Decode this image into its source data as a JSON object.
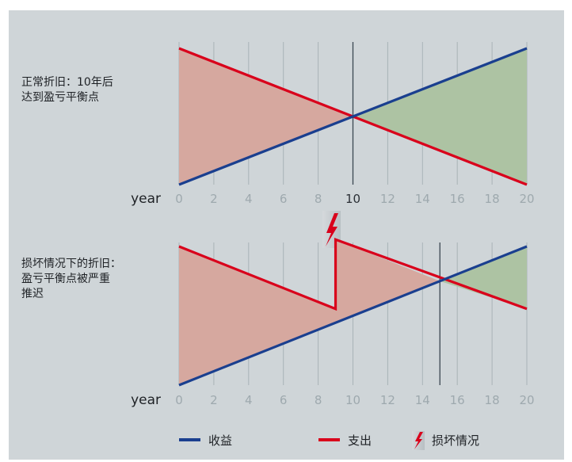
{
  "colors": {
    "background": "#cfd5d8",
    "revenue": "#1a3f8f",
    "expense": "#d9001b",
    "loss_fill": "#d6a89f",
    "profit_fill": "#adc3a3",
    "grid": "#a9b3b7",
    "breakeven_line": "#3a4650",
    "tick_label": "#9ea9ae",
    "highlight_label": "#2a2f35",
    "text": "#1e2125"
  },
  "chart_data": [
    {
      "type": "line",
      "annotation_lines": [
        "正常折旧：10年后",
        "达到盈亏平衡点"
      ],
      "xlabel": "year",
      "xlim": [
        0,
        20
      ],
      "ylim": [
        0,
        10
      ],
      "x_ticks": [
        0,
        2,
        4,
        6,
        8,
        10,
        12,
        14,
        16,
        18,
        20
      ],
      "highlight_tick": 10,
      "breakeven_x": 10,
      "series": [
        {
          "name": "收益",
          "points": [
            [
              0,
              0
            ],
            [
              20,
              10
            ]
          ]
        },
        {
          "name": "支出",
          "points": [
            [
              0,
              10
            ],
            [
              20,
              0
            ]
          ]
        }
      ]
    },
    {
      "type": "line",
      "annotation_lines": [
        "损坏情况下的折旧：",
        "盈亏平衡点被严重",
        "推迟"
      ],
      "xlabel": "year",
      "xlim": [
        0,
        20
      ],
      "ylim": [
        0,
        10
      ],
      "x_ticks": [
        0,
        2,
        4,
        6,
        8,
        10,
        12,
        14,
        16,
        18,
        20
      ],
      "breakeven_x": 15,
      "damage_x": 9,
      "series": [
        {
          "name": "收益",
          "points": [
            [
              0,
              0
            ],
            [
              20,
              10
            ]
          ]
        },
        {
          "name": "支出",
          "points": [
            [
              0,
              10
            ],
            [
              9,
              5.5
            ],
            [
              9,
              10.5
            ],
            [
              20,
              5.5
            ]
          ]
        }
      ]
    }
  ],
  "legend": {
    "items": [
      {
        "label": "收益",
        "color": "#1a3f8f",
        "kind": "line"
      },
      {
        "label": "支出",
        "color": "#d9001b",
        "kind": "line"
      },
      {
        "label": "损坏情况",
        "kind": "lightning-icon"
      }
    ]
  }
}
